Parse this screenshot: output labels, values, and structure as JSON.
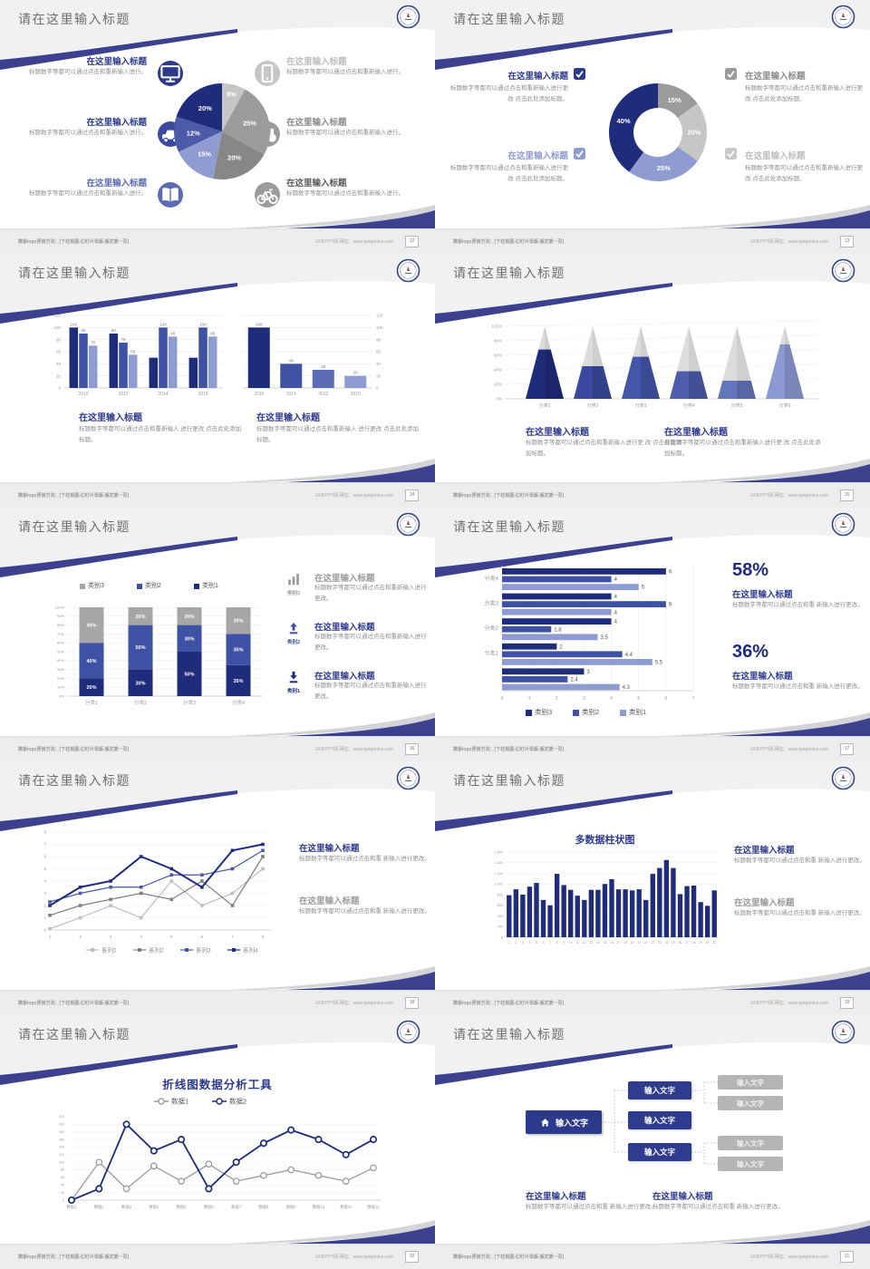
{
  "common": {
    "slide_title": "请在这里输入标题",
    "footer_left": "模板logo更换方法：[下拉视图-幻灯片母版-版式第一页]",
    "footer_right": "10年PPT网  网址：www.pptgenius.com",
    "colors": {
      "navy": "#1f2b7b",
      "blue": "#3f51a5",
      "periwinkle": "#8f9cd1",
      "accent": "#3c418f",
      "gray": "#9b9b9b",
      "gray_light": "#c6c6c6"
    }
  },
  "slides": [
    {
      "page": "12",
      "name": "pie-infographic",
      "left_items": [
        {
          "title": "在这里输入标题",
          "body": "标题数字等都可以通过点击和重新输入进行。",
          "icon": "monitor-icon",
          "icon_color": "#2d3a8c",
          "title_color": "#2d3a8c"
        },
        {
          "title": "在这里输入标题",
          "body": "标题数字等都可以通过点击和重新输入进行。",
          "icon": "car-icon",
          "icon_color": "#3a4a9f",
          "title_color": "#2d3a8c"
        },
        {
          "title": "在这里输入标题",
          "body": "标题数字等都可以通过点击和重新输入进行。",
          "icon": "book-icon",
          "icon_color": "#5b6bb5",
          "title_color": "#5b6bb5"
        }
      ],
      "right_items": [
        {
          "title": "在这里输入标题",
          "body": "标题数字等都可以通过点击和重新输入进行。",
          "icon": "phone-icon",
          "icon_color": "#c6c6c6",
          "title_color": "#bdbdbd"
        },
        {
          "title": "在这里输入标题",
          "body": "标题数字等都可以通过点击和重新输入进行。",
          "icon": "binoculars-icon",
          "icon_color": "#9b9b9b",
          "title_color": "#8a8a8a"
        },
        {
          "title": "在这里输入标题",
          "body": "标题数字等都可以通过点击和重新输入进行。",
          "icon": "bike-icon",
          "icon_color": "#9b9b9b",
          "title_color": "#595959"
        }
      ],
      "chart_data": {
        "type": "pie",
        "labels": [
          "8%",
          "25%",
          "20%",
          "15%",
          "12%",
          "20%"
        ],
        "values": [
          8,
          25,
          20,
          15,
          12,
          20
        ],
        "colors": [
          "#c6c6c6",
          "#9b9b9b",
          "#878787",
          "#8f9cd1",
          "#4c5aa8",
          "#1f2b7b"
        ]
      }
    },
    {
      "page": "13",
      "name": "donut-checklist",
      "left_items": [
        {
          "title": "在这里输入标题",
          "body": "标题数字等都可以通过点击和重新输入进行更改 点击此处添加标题。",
          "checkbox_color": "#2d3a8c",
          "title_color": "#2d3a8c"
        },
        {
          "title": "在这里输入标题",
          "body": "标题数字等都可以通过点击和重新输入进行更改 点击此处添加标题。",
          "checkbox_color": "#8f9cd1",
          "title_color": "#8f9cd1"
        }
      ],
      "right_items": [
        {
          "title": "在这里输入标题",
          "body": "标题数字等都可以通过点击和重新输入进行更改 点击此处添加标题。",
          "checkbox_color": "#9b9b9b",
          "title_color": "#8a8a8a"
        },
        {
          "title": "在这里输入标题",
          "body": "标题数字等都可以通过点击和重新输入进行更改 点击此处添加标题。",
          "checkbox_color": "#c9c9c9",
          "title_color": "#bdbdbd"
        }
      ],
      "chart_data": {
        "type": "pie",
        "donut": true,
        "labels": [
          "15%",
          "20%",
          "25%",
          "40%"
        ],
        "values": [
          15,
          20,
          25,
          40
        ],
        "colors": [
          "#9b9b9b",
          "#c6c6c6",
          "#8f9cd1",
          "#1f2b7b"
        ]
      }
    },
    {
      "page": "14",
      "name": "double-bar-charts",
      "blocks": [
        {
          "title": "在这里输入标题",
          "body": "标题数字等都可以通过点击和重新输入 进行更改 点击此处添加标题。",
          "title_color": "#2d3a8c"
        },
        {
          "title": "在这里输入标题",
          "body": "标题数字等都可以通过点击和重新输入 进行更改 点击此处添加标题。",
          "title_color": "#2d3a8c"
        }
      ],
      "chart_data": [
        {
          "type": "bar",
          "categories": [
            "2010",
            "2012",
            "2014",
            "2016"
          ],
          "series": [
            {
              "name": "series-dark",
              "color": "#1f2b7b",
              "values": [
                100,
                90,
                50,
                50
              ]
            },
            {
              "name": "series-mid",
              "color": "#3f51a5",
              "values": [
                90,
                75,
                100,
                100
              ]
            },
            {
              "name": "series-light",
              "color": "#8f9cd1",
              "values": [
                70,
                55,
                85,
                85
              ]
            }
          ],
          "bar_labels": [
            [
              "100",
              "90",
              "70"
            ],
            [
              "90",
              "75",
              "55"
            ],
            [
              "",
              "100",
              "85"
            ],
            [
              "",
              "100",
              "85"
            ]
          ],
          "ylim": [
            0,
            120
          ],
          "ytick_step": 20
        },
        {
          "type": "bar",
          "categories": [
            "2016",
            "2014",
            "2012",
            "2010"
          ],
          "values": [
            100,
            40,
            30,
            20
          ],
          "bar_labels": [
            "100",
            "40",
            "30",
            "20"
          ],
          "colors": [
            "#1f2b7b",
            "#3f51a5",
            "#5b6bb5",
            "#8f9cd1"
          ],
          "ylim": [
            0,
            120
          ],
          "ytick_step": 20,
          "axis_side": "right"
        }
      ]
    },
    {
      "page": "15",
      "name": "pyramid-chart",
      "blocks": [
        {
          "title": "在这里输入标题",
          "body": "标题数字等都可以通过点击和重新输入进行更 改 点击此处添加标题。",
          "title_color": "#2d3a8c"
        },
        {
          "title": "在这里输入标题",
          "body": "标题数字等都可以通过点击和重新输入进行更 改 点击此处添加标题。",
          "title_color": "#2d3a8c"
        }
      ],
      "chart_data": {
        "type": "bar",
        "subtype": "pyramid",
        "categories": [
          "分类1",
          "分类2",
          "分类3",
          "分类4",
          "分类5",
          "分类6"
        ],
        "values": [
          68,
          45,
          58,
          38,
          25,
          75
        ],
        "colors": [
          "#1f2b7b",
          "#3b4a9e",
          "#4456a8",
          "#4d5cab",
          "#6575bb",
          "#8b99d3"
        ],
        "ylim": [
          0,
          100
        ],
        "yticks": [
          "0%",
          "20%",
          "40%",
          "60%",
          "80%",
          "100%"
        ]
      }
    },
    {
      "page": "16",
      "name": "stacked-bar",
      "legend": [
        {
          "label": "类别3",
          "color": "#a6a6a6"
        },
        {
          "label": "类别2",
          "color": "#3f51a5"
        },
        {
          "label": "类别1",
          "color": "#1f2b7b"
        }
      ],
      "right_items": [
        {
          "title": "在这里输入标题",
          "body": "标题数字等都可以通过点击和重新输入进行更改。",
          "icon": "bar-chart-icon",
          "icon_label": "类别3",
          "icon_color": "#9b9b9b",
          "title_color": "#9b9b9b"
        },
        {
          "title": "在这里输入标题",
          "body": "标题数字等都可以通过点击和重新输入进行更改。",
          "icon": "upload-icon",
          "icon_label": "类别2",
          "icon_color": "#3f51a5",
          "title_color": "#2d3a8c"
        },
        {
          "title": "在这里输入标题",
          "body": "标题数字等都可以通过点击和重新输入进行更改。",
          "icon": "download-icon",
          "icon_label": "类别1",
          "icon_color": "#1f2b7b",
          "title_color": "#2d3a8c"
        }
      ],
      "chart_data": {
        "type": "bar",
        "stacked": true,
        "categories": [
          "分类1",
          "分类2",
          "分类3",
          "分类4"
        ],
        "series": [
          {
            "name": "类别1",
            "color": "#1f2b7b",
            "values": [
              20,
              30,
              50,
              35
            ]
          },
          {
            "name": "类别2",
            "color": "#3f51a5",
            "values": [
              40,
              50,
              30,
              35
            ]
          },
          {
            "name": "类别3",
            "color": "#a6a6a6",
            "values": [
              40,
              20,
              20,
              30
            ]
          }
        ],
        "ylim": [
          0,
          100
        ],
        "ytick_step": 10
      }
    },
    {
      "page": "17",
      "name": "horizontal-bar",
      "stats": [
        {
          "value": "58%",
          "title": "在这里输入标题",
          "body": "标题数字等都可以通过点击和重 新输入进行更改。"
        },
        {
          "value": "36%",
          "title": "在这里输入标题",
          "body": "标题数字等都可以通过点击和重 新输入进行更改。"
        }
      ],
      "chart_data": {
        "type": "bar",
        "orientation": "horizontal",
        "categories": [
          "分类4",
          "分类3",
          "分类2",
          "分类1",
          ""
        ],
        "series": [
          {
            "name": "类别3",
            "color": "#1f2b7b",
            "values": [
              6,
              4,
              4,
              2,
              3
            ]
          },
          {
            "name": "类别2",
            "color": "#3f51a5",
            "values": [
              4,
              6,
              1.8,
              4.4,
              2.4
            ]
          },
          {
            "name": "类别1",
            "color": "#8f9cd1",
            "values": [
              5,
              4,
              3.5,
              5.5,
              4.3
            ]
          }
        ],
        "xlim": [
          0,
          7
        ],
        "legend": [
          "类别3",
          "类别2",
          "类别1"
        ]
      }
    },
    {
      "page": "18",
      "name": "multi-line-chart",
      "blocks": [
        {
          "title": "在这里输入标题",
          "body": "标题数字等都可以通过点击和重 新输入进行更改。",
          "title_color": "#2d3a8c"
        },
        {
          "title": "在这里输入标题",
          "body": "标题数字等都可以通过点击和重 新输入进行更改。",
          "title_color": "#9b9b9b"
        }
      ],
      "chart_data": {
        "type": "line",
        "x": [
          "1",
          "2",
          "3",
          "4",
          "5",
          "6",
          "7",
          "8"
        ],
        "ylim": [
          0,
          8
        ],
        "series": [
          {
            "name": "系列1",
            "color": "#bfbfbf",
            "values": [
              0.1,
              1,
              2,
              1,
              4,
              2,
              3,
              5
            ]
          },
          {
            "name": "系列2",
            "color": "#7f7f7f",
            "values": [
              1.2,
              2,
              2.5,
              3,
              2.5,
              4,
              2,
              6
            ]
          },
          {
            "name": "系列3",
            "color": "#4a59a8",
            "values": [
              2.3,
              3,
              3.5,
              3.5,
              4.5,
              4.5,
              5,
              6.5
            ]
          },
          {
            "name": "系列4",
            "color": "#1f2b7b",
            "values": [
              2,
              3.5,
              4,
              6,
              5,
              3.5,
              6.5,
              7
            ]
          }
        ]
      }
    },
    {
      "page": "19",
      "name": "multi-column-chart",
      "blocks": [
        {
          "title": "在这里输入标题",
          "body": "标题数字等都可以通过点击和重 新输入进行更改。",
          "title_color": "#2d3a8c"
        },
        {
          "title": "在这里输入标题",
          "body": "标题数字等都可以通过点击和重 新输入进行更改。",
          "title_color": "#9b9b9b"
        }
      ],
      "chart_data": {
        "type": "bar",
        "title": "多数据柱状图",
        "categories": [
          "1",
          "2",
          "3",
          "4",
          "5",
          "6",
          "7",
          "8",
          "9",
          "10",
          "11",
          "12",
          "13",
          "14",
          "15",
          "16",
          "17",
          "18",
          "19",
          "20",
          "21",
          "22",
          "23",
          "24",
          "25",
          "26",
          "27",
          "28",
          "29",
          "30",
          "31"
        ],
        "values": [
          790,
          900,
          800,
          950,
          1020,
          700,
          600,
          1190,
          980,
          890,
          780,
          700,
          890,
          890,
          1000,
          1090,
          900,
          900,
          880,
          900,
          700,
          1190,
          1300,
          1450,
          1300,
          810,
          960,
          970,
          660,
          590,
          880
        ],
        "ylim": [
          0,
          1600
        ],
        "ytick_step": 200,
        "bar_color": "#1f2b7b"
      }
    },
    {
      "page": "20",
      "name": "two-line-chart",
      "chart_data": {
        "type": "line",
        "title": "折线图数据分析工具",
        "categories": [
          "数据1",
          "数据2",
          "数据3",
          "数据4",
          "数据5",
          "数据6",
          "数据7",
          "数据8",
          "数据9",
          "数据10",
          "数据11",
          "数据12"
        ],
        "ylim": [
          0,
          220
        ],
        "ytick_step": 20,
        "series": [
          {
            "name": "数据1",
            "color": "#9b9b9b",
            "values": [
              0,
              100,
              30,
              90,
              50,
              95,
              50,
              65,
              80,
              65,
              50,
              85
            ]
          },
          {
            "name": "数据2",
            "color": "#1f2b7b",
            "values": [
              0,
              30,
              200,
              130,
              160,
              30,
              100,
              150,
              185,
              160,
              120,
              160
            ]
          }
        ]
      }
    },
    {
      "page": "21",
      "name": "tree-diagram",
      "root": {
        "label": "输入文字",
        "icon": "home-icon",
        "color": "#2d3a8c"
      },
      "mid_nodes": [
        {
          "label": "输入文字"
        },
        {
          "label": "输入文字"
        },
        {
          "label": "输入文字"
        }
      ],
      "leaf_nodes": [
        {
          "label": "输入文字"
        },
        {
          "label": "输入文字"
        },
        {
          "label": "输入文字"
        },
        {
          "label": "输入文字"
        }
      ],
      "blocks": [
        {
          "title": "在这里输入标题",
          "body": "标题数字等都可以通过点击和重 新输入进行更改。",
          "title_color": "#2d3a8c"
        },
        {
          "title": "在这里输入标题",
          "body": "标题数字等都可以通过点击和重 新输入进行更改。",
          "title_color": "#2d3a8c"
        }
      ]
    }
  ]
}
